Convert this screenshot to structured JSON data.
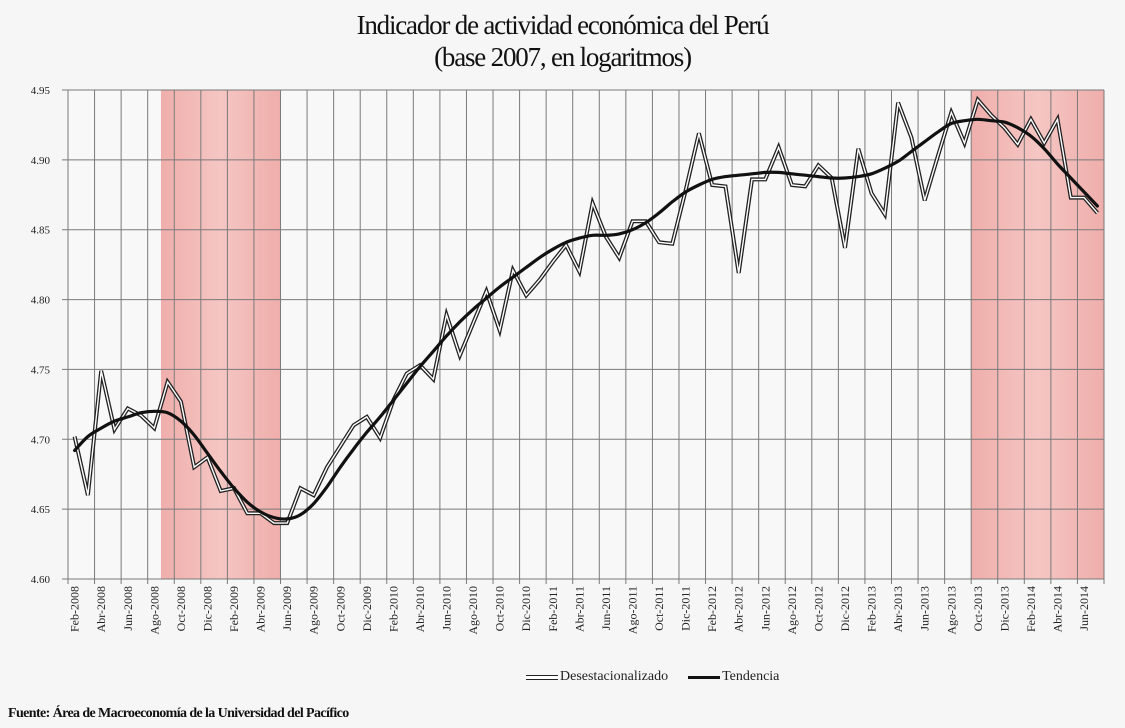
{
  "chart_data": {
    "type": "line",
    "title": "Indicador de actividad económica del Perú",
    "subtitle": "(base 2007, en logaritmos)",
    "source": "Fuente: Área de Macroeconomía de la Universidad del Pacífico",
    "ylim": [
      4.6,
      4.95
    ],
    "y_ticks": [
      "4.60",
      "4.65",
      "4.70",
      "4.75",
      "4.80",
      "4.85",
      "4.90",
      "4.95"
    ],
    "y_tick_values": [
      4.6,
      4.65,
      4.7,
      4.75,
      4.8,
      4.85,
      4.9,
      4.95
    ],
    "x_ticks": [
      "Feb-2008",
      "Abr-2008",
      "Jun-2008",
      "Ago-2008",
      "Oct-2008",
      "Dic-2008",
      "Feb-2009",
      "Abr-2009",
      "Jun-2009",
      "Ago-2009",
      "Oct-2009",
      "Dic-2009",
      "Feb-2010",
      "Abr-2010",
      "Jun-2010",
      "Ago-2010",
      "Oct-2010",
      "Dic-2010",
      "Feb-2011",
      "Abr-2011",
      "Jun-2011",
      "Ago-2011",
      "Oct-2011",
      "Dic-2011",
      "Feb-2012",
      "Abr-2012",
      "Jun-2012",
      "Ago-2012",
      "Oct-2012",
      "Dic-2012",
      "Feb-2013",
      "Abr-2013",
      "Jun-2013",
      "Ago-2013",
      "Oct-2013",
      "Dic-2013",
      "Feb-2014",
      "Abr-2014",
      "Jun-2014"
    ],
    "grid": true,
    "legend_position": "bottom",
    "shaded_periods": [
      {
        "from": "Sep-2008",
        "to": "May-2009"
      },
      {
        "from": "Oct-2013",
        "to": "Jul-2014"
      }
    ],
    "colors": {
      "shade": "#f2bab7",
      "grid": "#7a7a7a",
      "background": "#f6f6f6",
      "trend": "#111111"
    },
    "series": [
      {
        "name": "Desestacionalizado",
        "style": "double-line",
        "values": [
          4.702,
          4.66,
          4.749,
          4.707,
          4.722,
          4.717,
          4.708,
          4.741,
          4.727,
          4.68,
          4.687,
          4.663,
          4.665,
          4.647,
          4.647,
          4.64,
          4.64,
          4.665,
          4.66,
          4.68,
          4.695,
          4.71,
          4.716,
          4.701,
          4.728,
          4.747,
          4.753,
          4.743,
          4.789,
          4.76,
          4.783,
          4.806,
          4.778,
          4.821,
          4.803,
          4.814,
          4.827,
          4.839,
          4.82,
          4.869,
          4.845,
          4.83,
          4.856,
          4.856,
          4.841,
          4.84,
          4.878,
          4.919,
          4.882,
          4.881,
          4.819,
          4.886,
          4.886,
          4.909,
          4.882,
          4.881,
          4.896,
          4.887,
          4.837,
          4.908,
          4.876,
          4.861,
          4.941,
          4.916,
          4.871,
          4.903,
          4.934,
          4.912,
          4.943,
          4.932,
          4.923,
          4.911,
          4.929,
          4.912,
          4.929,
          4.873,
          4.873,
          4.862
        ]
      },
      {
        "name": "Tendencia",
        "style": "thick-line",
        "values": [
          4.692,
          4.702,
          4.708,
          4.713,
          4.716,
          4.719,
          4.72,
          4.719,
          4.713,
          4.703,
          4.69,
          4.677,
          4.665,
          4.655,
          4.648,
          4.644,
          4.643,
          4.646,
          4.654,
          4.666,
          4.68,
          4.693,
          4.705,
          4.716,
          4.728,
          4.74,
          4.752,
          4.763,
          4.774,
          4.784,
          4.793,
          4.801,
          4.809,
          4.816,
          4.823,
          4.83,
          4.836,
          4.841,
          4.844,
          4.846,
          4.846,
          4.847,
          4.85,
          4.855,
          4.862,
          4.87,
          4.877,
          4.882,
          4.886,
          4.888,
          4.889,
          4.89,
          4.891,
          4.891,
          4.89,
          4.889,
          4.888,
          4.887,
          4.887,
          4.888,
          4.89,
          4.894,
          4.899,
          4.906,
          4.913,
          4.92,
          4.926,
          4.928,
          4.929,
          4.928,
          4.927,
          4.923,
          4.917,
          4.908,
          4.897,
          4.887,
          4.877,
          4.867
        ]
      }
    ]
  }
}
